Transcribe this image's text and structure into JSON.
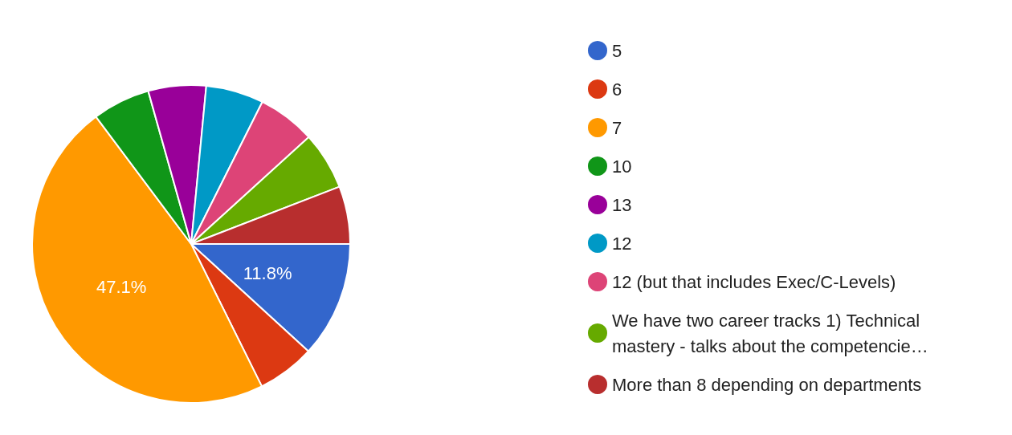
{
  "chart_data": {
    "type": "pie",
    "categories": [
      "5",
      "6",
      "7",
      "10",
      "13",
      "12",
      "12 (but that includes Exec/C-Levels)",
      "We have two career tracks 1) Technical mastery - talks about the competencie…",
      "More than 8 depending on departments"
    ],
    "values": [
      11.8,
      5.87,
      47.1,
      5.87,
      5.87,
      5.87,
      5.87,
      5.87,
      5.87
    ],
    "colors": [
      "#3366cc",
      "#dc3912",
      "#ff9900",
      "#109618",
      "#990099",
      "#0099c6",
      "#dd4477",
      "#66aa00",
      "#b82e2e"
    ],
    "value_labels": [
      "11.8%",
      null,
      "47.1%",
      null,
      null,
      null,
      null,
      null,
      null
    ],
    "legend": "right"
  }
}
